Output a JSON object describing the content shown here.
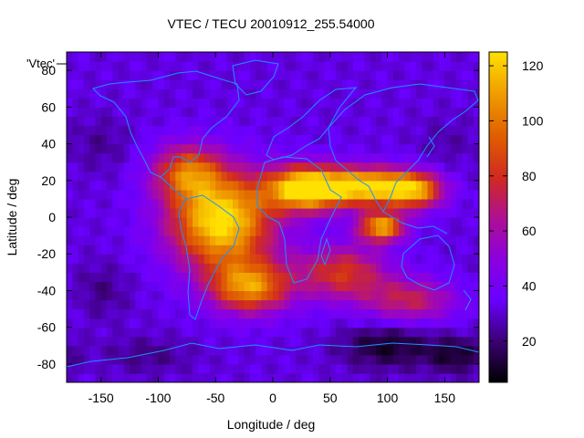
{
  "chart_data": {
    "type": "heatmap",
    "title": "VTEC / TECU 20010912_255.54000",
    "xlabel": "Longitude / deg",
    "ylabel": "Latitude / deg",
    "xlim": [
      -180,
      180
    ],
    "ylim": [
      -90,
      90
    ],
    "x_ticks": [
      "-150",
      "-100",
      "-50",
      "0",
      "50",
      "100",
      "150"
    ],
    "y_ticks": [
      "-80",
      "-60",
      "-40",
      "-20",
      "0",
      "20",
      "40",
      "60",
      "80"
    ],
    "colorbar": {
      "min": 5,
      "max": 125,
      "ticks": [
        "20",
        "40",
        "60",
        "80",
        "100",
        "120"
      ],
      "colormap": [
        "#000000",
        "#3a0070",
        "#6a00ff",
        "#8a00e0",
        "#b01090",
        "#d02a20",
        "#e06000",
        "#f0a000",
        "#ffe000"
      ]
    },
    "legend": "'Vtec'",
    "series": [
      {
        "name": "Vtec",
        "features": [
          {
            "lon": -45,
            "lat": -2,
            "value": 95,
            "slon": 45,
            "slat": 26
          },
          {
            "lon": 30,
            "lat": 16,
            "value": 105,
            "slon": 35,
            "slat": 12
          },
          {
            "lon": 85,
            "lat": 17,
            "value": 88,
            "slon": 35,
            "slat": 10
          },
          {
            "lon": 95,
            "lat": -5,
            "value": 80,
            "slon": 20,
            "slat": 8
          },
          {
            "lon": 125,
            "lat": 15,
            "value": 70,
            "slon": 25,
            "slat": 10
          },
          {
            "lon": -20,
            "lat": -38,
            "value": 70,
            "slon": 35,
            "slat": 14
          },
          {
            "lon": -75,
            "lat": 25,
            "value": 55,
            "slon": 30,
            "slat": 15
          },
          {
            "lon": 60,
            "lat": -30,
            "value": 50,
            "slon": 40,
            "slat": 15
          },
          {
            "lon": 120,
            "lat": -45,
            "value": 40,
            "slon": 40,
            "slat": 12
          },
          {
            "lon": 100,
            "lat": -70,
            "value": -22,
            "slon": 40,
            "slat": 12
          },
          {
            "lon": 160,
            "lat": -75,
            "value": -20,
            "slon": 25,
            "slat": 10
          },
          {
            "lon": -150,
            "lat": -40,
            "value": -10,
            "slon": 25,
            "slat": 15
          },
          {
            "lon": -150,
            "lat": 40,
            "value": -8,
            "slon": 25,
            "slat": 15
          },
          {
            "lon": -110,
            "lat": -75,
            "value": -10,
            "slon": 40,
            "slat": 10
          },
          {
            "lon": 150,
            "lat": 40,
            "value": -6,
            "slon": 25,
            "slat": 15
          }
        ]
      }
    ]
  }
}
